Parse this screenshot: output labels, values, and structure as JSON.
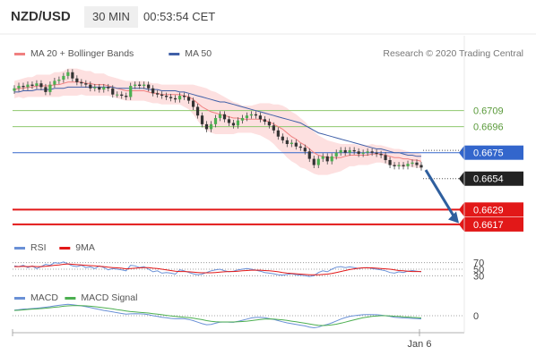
{
  "header": {
    "pair": "NZD/USD",
    "timeframe": "30 MIN",
    "time": "00:53:54 CET"
  },
  "copyright": "Research © 2020 Trading Central",
  "colors": {
    "ma20": "#f08080",
    "bands": "#fde0e0",
    "ma50": "#4060a8",
    "resistance": "#8ec86e",
    "pivot": "#3366cc",
    "support": "#e21818",
    "up_candle": "#4caf50",
    "down_candle": "#333333",
    "rsi": "#6a90d6",
    "rsi_ma": "#e21818",
    "macd": "#6a90d6",
    "macd_signal": "#4caf50",
    "arrow": "#2f5f9e"
  },
  "chart_data": [
    {
      "type": "line",
      "name": "price",
      "legend": [
        "MA 20 + Bollinger Bands",
        "MA 50"
      ],
      "x_tick_labels": [
        "Jan 6"
      ],
      "ylim": [
        0.6609,
        0.6742
      ],
      "close": [
        0.6727,
        0.6729,
        0.6728,
        0.673,
        0.6729,
        0.6731,
        0.6728,
        0.6724,
        0.673,
        0.6733,
        0.6734,
        0.6737,
        0.674,
        0.6735,
        0.6732,
        0.6731,
        0.673,
        0.6727,
        0.6728,
        0.6726,
        0.6728,
        0.6727,
        0.6722,
        0.6722,
        0.6721,
        0.672,
        0.6729,
        0.673,
        0.6729,
        0.673,
        0.6727,
        0.6723,
        0.6722,
        0.6721,
        0.672,
        0.6719,
        0.6718,
        0.6721,
        0.672,
        0.6717,
        0.6712,
        0.6705,
        0.6698,
        0.6694,
        0.6698,
        0.6703,
        0.6706,
        0.6702,
        0.6699,
        0.6697,
        0.6701,
        0.6703,
        0.6705,
        0.6706,
        0.6705,
        0.6702,
        0.67,
        0.6697,
        0.6693,
        0.6688,
        0.6685,
        0.6682,
        0.6683,
        0.668,
        0.6679,
        0.6676,
        0.667,
        0.6665,
        0.667,
        0.6672,
        0.6668,
        0.6672,
        0.6675,
        0.6677,
        0.6675,
        0.6677,
        0.6676,
        0.6674,
        0.6675,
        0.6676,
        0.6675,
        0.6674,
        0.6673,
        0.6669,
        0.6665,
        0.6664,
        0.6665,
        0.6664,
        0.6666,
        0.6667,
        0.6665,
        0.6663
      ],
      "ma20": [
        0.6726,
        0.6727,
        0.6727,
        0.6728,
        0.6728,
        0.6729,
        0.6729,
        0.6729,
        0.6729,
        0.673,
        0.673,
        0.6731,
        0.6732,
        0.6732,
        0.6732,
        0.6732,
        0.6731,
        0.6731,
        0.673,
        0.673,
        0.673,
        0.6729,
        0.6728,
        0.6727,
        0.6726,
        0.6725,
        0.6725,
        0.6725,
        0.6725,
        0.6725,
        0.6724,
        0.6723,
        0.6723,
        0.6722,
        0.6722,
        0.6722,
        0.6722,
        0.6722,
        0.6721,
        0.672,
        0.6718,
        0.6715,
        0.6712,
        0.671,
        0.6708,
        0.6707,
        0.6706,
        0.6705,
        0.6704,
        0.6703,
        0.6703,
        0.6702,
        0.6702,
        0.6702,
        0.6702,
        0.6702,
        0.6701,
        0.67,
        0.6698,
        0.6696,
        0.6694,
        0.6691,
        0.6688,
        0.6686,
        0.6683,
        0.6681,
        0.6678,
        0.6675,
        0.6673,
        0.6672,
        0.6671,
        0.6671,
        0.6671,
        0.6671,
        0.6672,
        0.6673,
        0.6673,
        0.6673,
        0.6673,
        0.6673,
        0.6674,
        0.6674,
        0.6674,
        0.6673,
        0.6672,
        0.6671,
        0.6671,
        0.667,
        0.667,
        0.6669,
        0.6669,
        0.6668
      ],
      "ma50": [
        0.6724,
        0.6724,
        0.6725,
        0.6725,
        0.6725,
        0.6726,
        0.6726,
        0.6726,
        0.6726,
        0.6727,
        0.6727,
        0.6727,
        0.6728,
        0.6728,
        0.6728,
        0.6728,
        0.6728,
        0.6728,
        0.6728,
        0.6728,
        0.6728,
        0.6728,
        0.6728,
        0.6727,
        0.6727,
        0.6727,
        0.6727,
        0.6727,
        0.6727,
        0.6727,
        0.6726,
        0.6726,
        0.6726,
        0.6725,
        0.6725,
        0.6725,
        0.6725,
        0.6724,
        0.6724,
        0.6723,
        0.6722,
        0.6721,
        0.672,
        0.6719,
        0.6718,
        0.6717,
        0.6716,
        0.6716,
        0.6715,
        0.6714,
        0.6713,
        0.6712,
        0.6711,
        0.671,
        0.6709,
        0.6708,
        0.6707,
        0.6706,
        0.6705,
        0.6704,
        0.6703,
        0.6702,
        0.6701,
        0.67,
        0.6699,
        0.6697,
        0.6695,
        0.6693,
        0.6691,
        0.669,
        0.6689,
        0.6688,
        0.6687,
        0.6686,
        0.6685,
        0.6684,
        0.6683,
        0.6682,
        0.6681,
        0.668,
        0.6679,
        0.6678,
        0.6678,
        0.6677,
        0.6676,
        0.6675,
        0.6675,
        0.6674,
        0.6673,
        0.6673,
        0.6672,
        0.6672
      ],
      "band_width": [
        0.0007,
        0.0007,
        0.0008,
        0.0008,
        0.0008,
        0.0009,
        0.0009,
        0.0009,
        0.0009,
        0.001,
        0.001,
        0.001,
        0.0011,
        0.0011,
        0.0011,
        0.001,
        0.001,
        0.001,
        0.0009,
        0.0009,
        0.0009,
        0.0008,
        0.0008,
        0.0008,
        0.0008,
        0.0008,
        0.0008,
        0.0008,
        0.0008,
        0.0008,
        0.0008,
        0.0008,
        0.0008,
        0.0008,
        0.0008,
        0.0008,
        0.0008,
        0.0008,
        0.0009,
        0.001,
        0.0012,
        0.0014,
        0.0016,
        0.0017,
        0.0017,
        0.0017,
        0.0016,
        0.0015,
        0.0014,
        0.0013,
        0.0012,
        0.0011,
        0.0011,
        0.0011,
        0.0012,
        0.0013,
        0.0014,
        0.0015,
        0.0016,
        0.0018,
        0.0019,
        0.002,
        0.002,
        0.002,
        0.002,
        0.0019,
        0.0018,
        0.0017,
        0.0016,
        0.0015,
        0.0014,
        0.0013,
        0.0012,
        0.0011,
        0.001,
        0.0009,
        0.0009,
        0.0008,
        0.0008,
        0.0008,
        0.0008,
        0.0007,
        0.0007,
        0.0007,
        0.0007,
        0.0007,
        0.0007,
        0.0007,
        0.0006,
        0.0006,
        0.0006,
        0.0006
      ],
      "levels": [
        {
          "value": 0.6709,
          "label": "0.6709",
          "kind": "resistance"
        },
        {
          "value": 0.6696,
          "label": "0.6696",
          "kind": "resistance"
        },
        {
          "value": 0.6675,
          "label": "0.6675",
          "kind": "pivot"
        },
        {
          "value": 0.6629,
          "label": "0.6629",
          "kind": "support"
        },
        {
          "value": 0.6617,
          "label": "0.6617",
          "kind": "support"
        }
      ],
      "last_price": {
        "value": 0.6654,
        "label": "0.6654"
      },
      "forecast_arrow": {
        "from": 0.6661,
        "to": 0.6618
      }
    },
    {
      "type": "line",
      "name": "rsi",
      "legend": [
        "RSI",
        "9MA"
      ],
      "levels": [
        70,
        50,
        30
      ],
      "level_labels": [
        "70",
        "50",
        "30"
      ],
      "ylim": [
        20,
        80
      ],
      "rsi": [
        60,
        58,
        62,
        55,
        60,
        52,
        58,
        65,
        62,
        70,
        68,
        72,
        66,
        60,
        58,
        62,
        55,
        57,
        52,
        60,
        55,
        48,
        52,
        50,
        48,
        45,
        62,
        60,
        55,
        58,
        50,
        42,
        45,
        38,
        40,
        38,
        35,
        48,
        45,
        40,
        36,
        33,
        35,
        40,
        45,
        48,
        50,
        45,
        42,
        44,
        48,
        50,
        52,
        50,
        47,
        44,
        40,
        38,
        36,
        33,
        32,
        34,
        36,
        33,
        32,
        30,
        28,
        30,
        40,
        45,
        42,
        50,
        56,
        58,
        55,
        57,
        55,
        52,
        54,
        55,
        52,
        50,
        48,
        45,
        40,
        38,
        42,
        40,
        44,
        46,
        44,
        42
      ],
      "rsi_ma": [
        58,
        58,
        59,
        58,
        59,
        58,
        58,
        59,
        60,
        62,
        63,
        65,
        66,
        65,
        64,
        63,
        62,
        61,
        60,
        59,
        58,
        56,
        55,
        54,
        53,
        51,
        52,
        53,
        54,
        55,
        55,
        53,
        52,
        50,
        48,
        46,
        44,
        43,
        43,
        42,
        41,
        40,
        39,
        39,
        39,
        40,
        41,
        42,
        43,
        43,
        44,
        45,
        46,
        47,
        47,
        47,
        46,
        45,
        44,
        42,
        40,
        38,
        37,
        36,
        35,
        34,
        33,
        33,
        33,
        34,
        35,
        37,
        40,
        43,
        46,
        49,
        51,
        53,
        54,
        54,
        54,
        53,
        52,
        51,
        50,
        48,
        46,
        45,
        44,
        43,
        43,
        43
      ]
    },
    {
      "type": "line",
      "name": "macd",
      "legend": [
        "MACD",
        "MACD Signal"
      ],
      "levels": [
        0
      ],
      "level_labels": [
        "0"
      ],
      "ylim": [
        -9,
        9
      ],
      "macd": [
        3,
        3.2,
        3.5,
        3.6,
        3.8,
        4,
        4.2,
        4.5,
        4.8,
        5.2,
        5.5,
        5.8,
        6,
        5.8,
        5.5,
        5.2,
        4.8,
        4.3,
        3.8,
        3.3,
        2.8,
        2.4,
        2,
        1.6,
        1.2,
        0.8,
        1,
        1.1,
        1,
        0.9,
        0.5,
        0,
        -0.4,
        -0.8,
        -1.1,
        -1.4,
        -1.6,
        -1.5,
        -1.6,
        -2,
        -2.6,
        -3.4,
        -4.2,
        -4.8,
        -4.6,
        -4,
        -3.4,
        -3.3,
        -3.4,
        -3.5,
        -3,
        -2.4,
        -1.8,
        -1.2,
        -0.9,
        -0.9,
        -1.1,
        -1.5,
        -2,
        -2.6,
        -3.2,
        -3.8,
        -4.2,
        -4.6,
        -5,
        -5.4,
        -6,
        -6.4,
        -6,
        -5.2,
        -4.6,
        -3.8,
        -2.8,
        -1.8,
        -1,
        -0.4,
        0,
        0.3,
        0.5,
        0.6,
        0.6,
        0.5,
        0.3,
        0,
        -0.4,
        -0.8,
        -1,
        -1.2,
        -1.3,
        -1.4,
        -1.5,
        -1.7
      ],
      "macd_signal": [
        2.8,
        2.9,
        3.1,
        3.3,
        3.5,
        3.6,
        3.8,
        4,
        4.2,
        4.5,
        4.7,
        5,
        5.2,
        5.3,
        5.3,
        5.3,
        5.2,
        5,
        4.8,
        4.5,
        4.2,
        3.9,
        3.6,
        3.2,
        2.9,
        2.5,
        2.2,
        2,
        1.8,
        1.6,
        1.4,
        1.1,
        0.8,
        0.5,
        0.2,
        -0.1,
        -0.4,
        -0.6,
        -0.8,
        -1,
        -1.3,
        -1.7,
        -2.1,
        -2.6,
        -3,
        -3.2,
        -3.3,
        -3.3,
        -3.3,
        -3.3,
        -3.2,
        -3.1,
        -2.9,
        -2.6,
        -2.3,
        -2,
        -1.8,
        -1.7,
        -1.8,
        -2,
        -2.2,
        -2.5,
        -2.9,
        -3.2,
        -3.6,
        -4,
        -4.4,
        -4.8,
        -5.1,
        -5.2,
        -5.1,
        -4.9,
        -4.5,
        -4,
        -3.4,
        -2.8,
        -2.2,
        -1.6,
        -1.1,
        -0.7,
        -0.4,
        -0.2,
        0,
        0,
        -0.1,
        -0.3,
        -0.4,
        -0.6,
        -0.7,
        -0.9,
        -1,
        -1.2
      ]
    }
  ]
}
